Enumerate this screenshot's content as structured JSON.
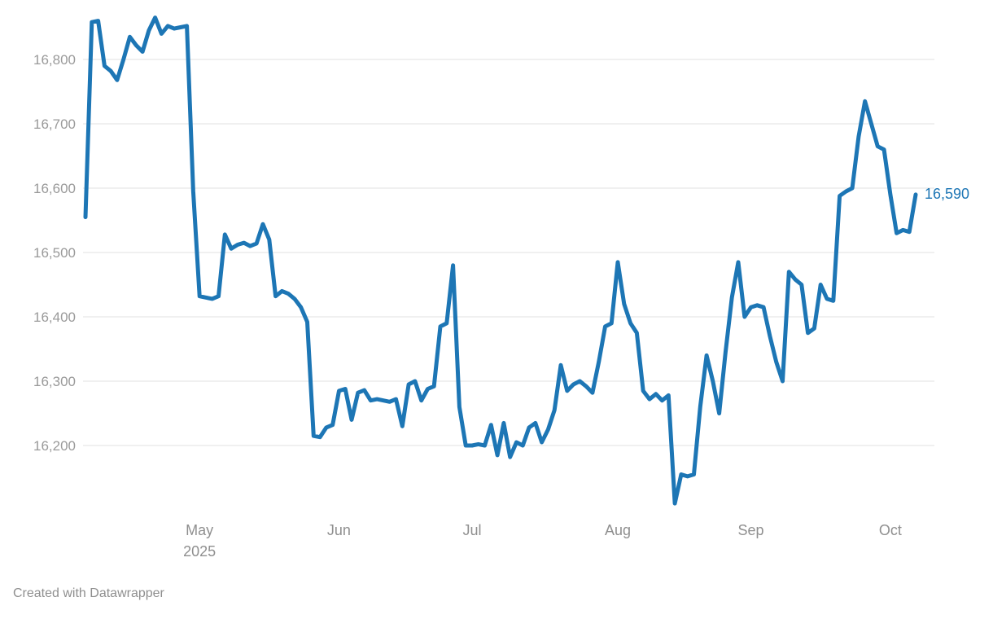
{
  "page": {
    "footer": "Created with Datawrapper"
  },
  "chart": {
    "end_label": "16,590",
    "line_color": "#1d76b5",
    "grid_color": "#e2e2e2",
    "tick_label_color": "#9a9a9a"
  },
  "chart_data": {
    "type": "line",
    "x_type": "date",
    "x_unit": "weekday dates, April–October 2025",
    "ylim": [
      16100,
      16880
    ],
    "grid": true,
    "legend": "none",
    "end_label": "16,590",
    "y_ticks": [
      {
        "v": 16200,
        "label": "16,200"
      },
      {
        "v": 16300,
        "label": "16,300"
      },
      {
        "v": 16400,
        "label": "16,400"
      },
      {
        "v": 16500,
        "label": "16,500"
      },
      {
        "v": 16600,
        "label": "16,600"
      },
      {
        "v": 16700,
        "label": "16,700"
      },
      {
        "v": 16800,
        "label": "16,800"
      }
    ],
    "x_ticks": [
      {
        "index": 18,
        "label": "May",
        "sub": "2025"
      },
      {
        "index": 40,
        "label": "Jun"
      },
      {
        "index": 61,
        "label": "Jul"
      },
      {
        "index": 84,
        "label": "Aug"
      },
      {
        "index": 105,
        "label": "Sep"
      },
      {
        "index": 127,
        "label": "Oct"
      }
    ],
    "dates": [
      "2025-04-07",
      "2025-04-08",
      "2025-04-09",
      "2025-04-10",
      "2025-04-11",
      "2025-04-14",
      "2025-04-15",
      "2025-04-16",
      "2025-04-17",
      "2025-04-18",
      "2025-04-21",
      "2025-04-22",
      "2025-04-23",
      "2025-04-24",
      "2025-04-25",
      "2025-04-28",
      "2025-04-29",
      "2025-04-30",
      "2025-05-01",
      "2025-05-02",
      "2025-05-05",
      "2025-05-06",
      "2025-05-07",
      "2025-05-08",
      "2025-05-09",
      "2025-05-12",
      "2025-05-13",
      "2025-05-14",
      "2025-05-15",
      "2025-05-16",
      "2025-05-19",
      "2025-05-20",
      "2025-05-21",
      "2025-05-22",
      "2025-05-23",
      "2025-05-26",
      "2025-05-27",
      "2025-05-28",
      "2025-05-29",
      "2025-05-30",
      "2025-06-02",
      "2025-06-03",
      "2025-06-04",
      "2025-06-05",
      "2025-06-06",
      "2025-06-09",
      "2025-06-10",
      "2025-06-11",
      "2025-06-12",
      "2025-06-13",
      "2025-06-16",
      "2025-06-17",
      "2025-06-18",
      "2025-06-19",
      "2025-06-20",
      "2025-06-23",
      "2025-06-24",
      "2025-06-25",
      "2025-06-26",
      "2025-06-27",
      "2025-06-30",
      "2025-07-01",
      "2025-07-02",
      "2025-07-03",
      "2025-07-04",
      "2025-07-07",
      "2025-07-08",
      "2025-07-09",
      "2025-07-10",
      "2025-07-11",
      "2025-07-14",
      "2025-07-15",
      "2025-07-16",
      "2025-07-17",
      "2025-07-18",
      "2025-07-21",
      "2025-07-22",
      "2025-07-23",
      "2025-07-24",
      "2025-07-25",
      "2025-07-28",
      "2025-07-29",
      "2025-07-30",
      "2025-07-31",
      "2025-08-01",
      "2025-08-04",
      "2025-08-05",
      "2025-08-06",
      "2025-08-07",
      "2025-08-08",
      "2025-08-11",
      "2025-08-12",
      "2025-08-13",
      "2025-08-14",
      "2025-08-15",
      "2025-08-18",
      "2025-08-19",
      "2025-08-20",
      "2025-08-21",
      "2025-08-22",
      "2025-08-25",
      "2025-08-26",
      "2025-08-27",
      "2025-08-28",
      "2025-08-29",
      "2025-09-01",
      "2025-09-02",
      "2025-09-03",
      "2025-09-04",
      "2025-09-05",
      "2025-09-08",
      "2025-09-09",
      "2025-09-10",
      "2025-09-11",
      "2025-09-12",
      "2025-09-15",
      "2025-09-16",
      "2025-09-17",
      "2025-09-18",
      "2025-09-19",
      "2025-09-22",
      "2025-09-23",
      "2025-09-24",
      "2025-09-25",
      "2025-09-26",
      "2025-09-29",
      "2025-09-30",
      "2025-10-01",
      "2025-10-02",
      "2025-10-03",
      "2025-10-06",
      "2025-10-07"
    ],
    "values": [
      16555,
      16858,
      16860,
      16790,
      16782,
      16768,
      16800,
      16835,
      16822,
      16812,
      16845,
      16865,
      16840,
      16852,
      16848,
      16850,
      16852,
      16595,
      16432,
      16430,
      16428,
      16432,
      16528,
      16506,
      16512,
      16515,
      16510,
      16514,
      16544,
      16520,
      16432,
      16440,
      16436,
      16428,
      16415,
      16392,
      16215,
      16213,
      16228,
      16232,
      16285,
      16288,
      16240,
      16282,
      16286,
      16270,
      16272,
      16270,
      16268,
      16272,
      16230,
      16295,
      16300,
      16270,
      16288,
      16292,
      16385,
      16390,
      16480,
      16260,
      16200,
      16200,
      16202,
      16200,
      16232,
      16185,
      16235,
      16182,
      16205,
      16200,
      16228,
      16235,
      16205,
      16225,
      16255,
      16325,
      16285,
      16295,
      16300,
      16292,
      16282,
      16330,
      16385,
      16390,
      16485,
      16420,
      16390,
      16375,
      16285,
      16272,
      16280,
      16270,
      16278,
      16110,
      16155,
      16152,
      16155,
      16260,
      16340,
      16300,
      16250,
      16345,
      16430,
      16485,
      16400,
      16415,
      16418,
      16415,
      16370,
      16330,
      16300,
      16470,
      16458,
      16450,
      16375,
      16382,
      16450,
      16428,
      16425,
      16588,
      16595,
      16600,
      16680,
      16735,
      16700,
      16665,
      16660,
      16590,
      16530,
      16535,
      16532,
      16590
    ]
  }
}
